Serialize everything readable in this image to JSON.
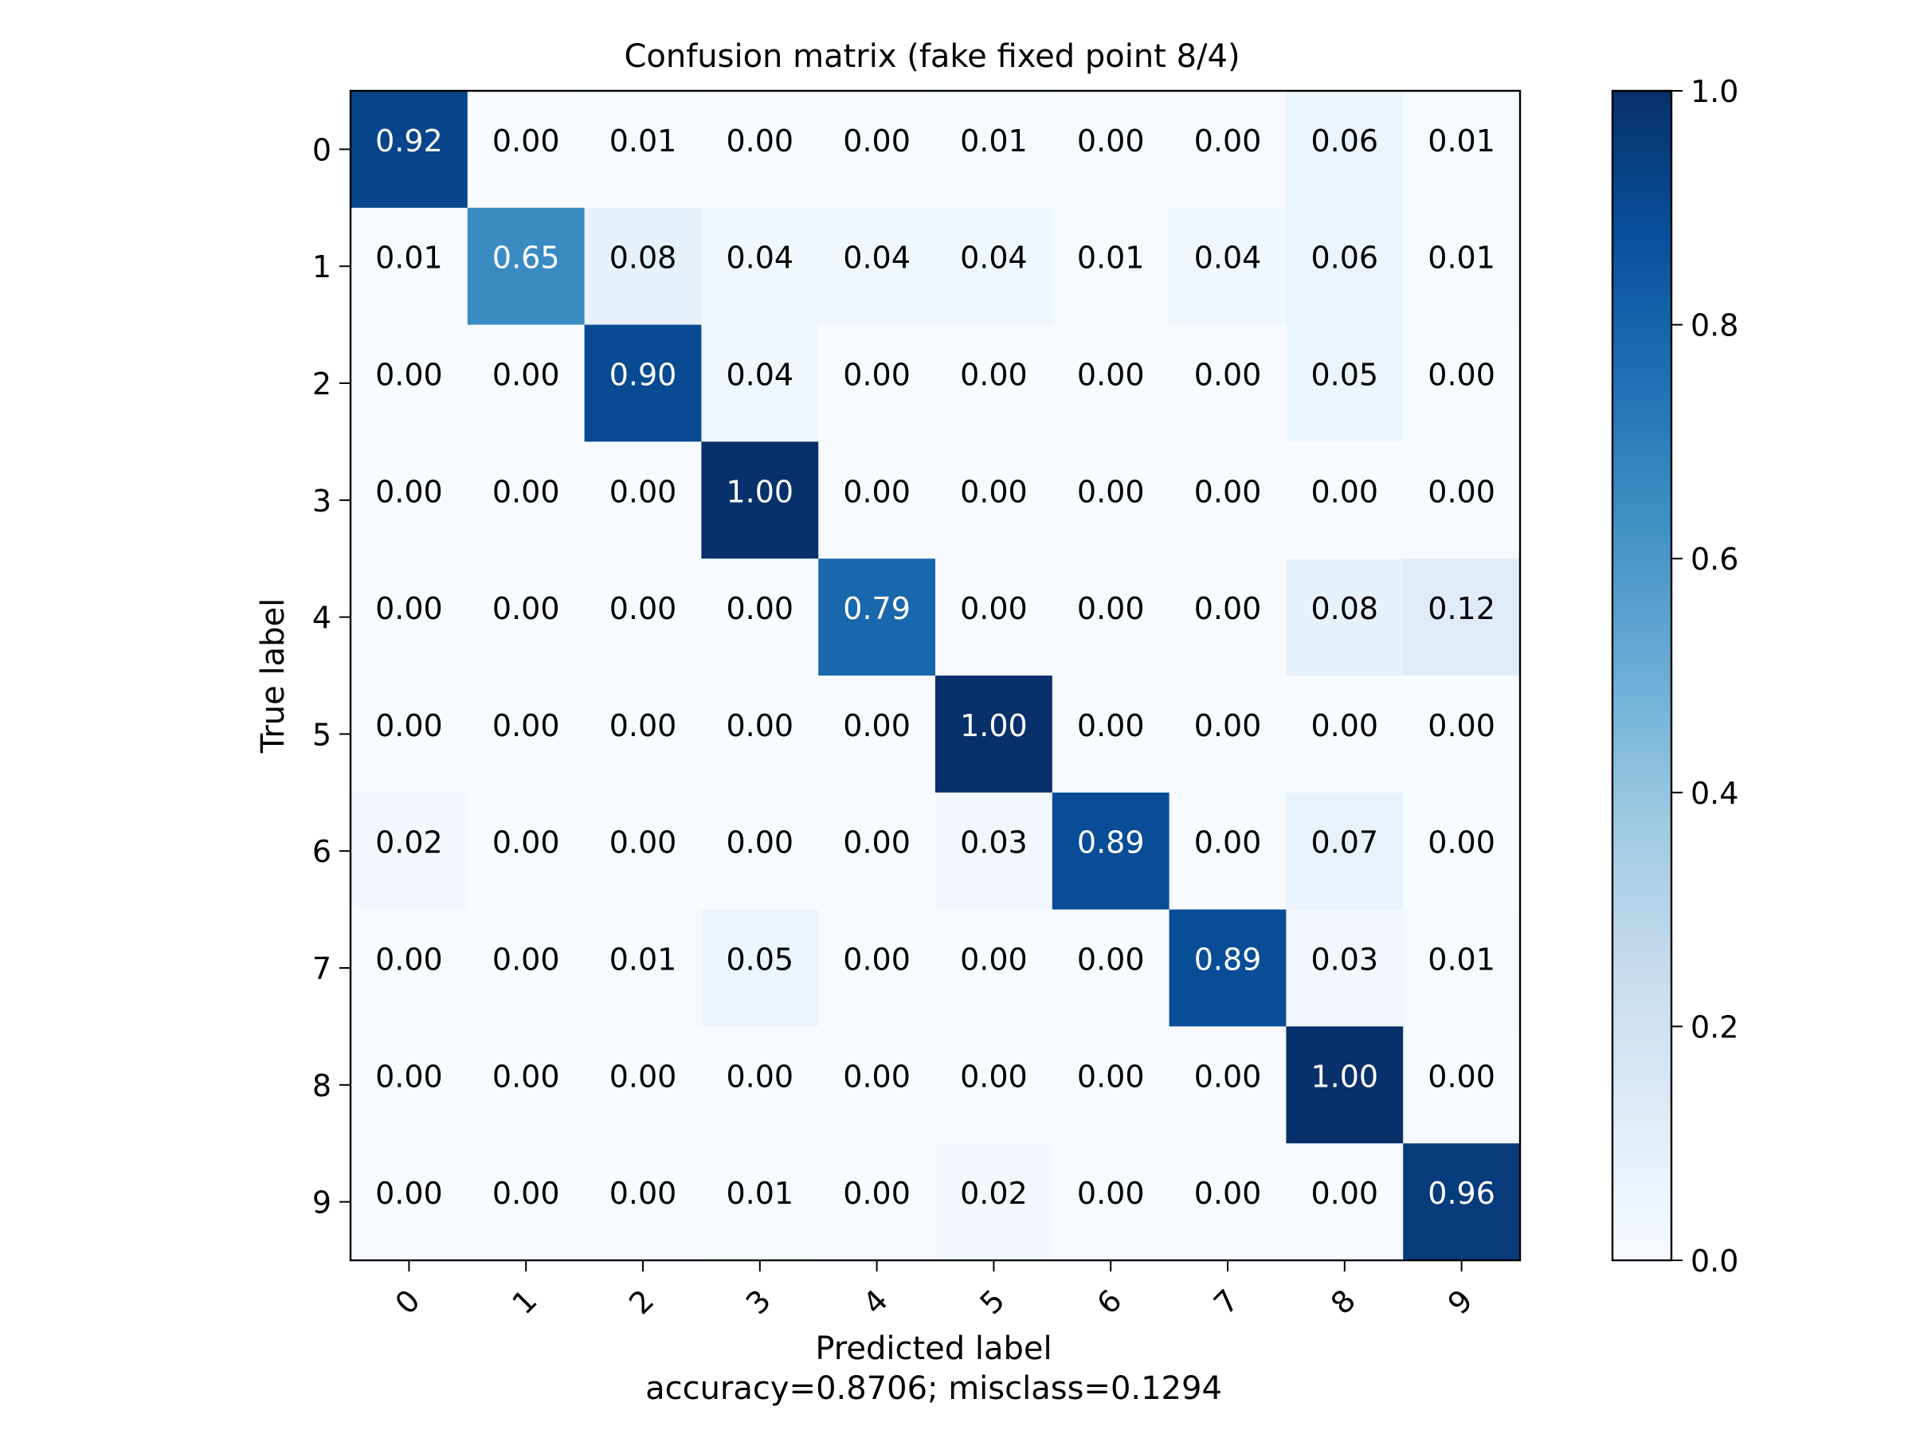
{
  "chart_data": {
    "type": "heatmap",
    "title": "Confusion matrix (fake fixed point 8/4)",
    "xlabel": "Predicted label",
    "ylabel": "True label",
    "subtitle": "accuracy=0.8706; misclass=0.1294",
    "x_categories": [
      "0",
      "1",
      "2",
      "3",
      "4",
      "5",
      "6",
      "7",
      "8",
      "9"
    ],
    "y_categories": [
      "0",
      "1",
      "2",
      "3",
      "4",
      "5",
      "6",
      "7",
      "8",
      "9"
    ],
    "values": [
      [
        0.92,
        0.0,
        0.01,
        0.0,
        0.0,
        0.01,
        0.0,
        0.0,
        0.06,
        0.01
      ],
      [
        0.01,
        0.65,
        0.08,
        0.04,
        0.04,
        0.04,
        0.01,
        0.04,
        0.06,
        0.01
      ],
      [
        0.0,
        0.0,
        0.9,
        0.04,
        0.0,
        0.0,
        0.0,
        0.0,
        0.05,
        0.0
      ],
      [
        0.0,
        0.0,
        0.0,
        1.0,
        0.0,
        0.0,
        0.0,
        0.0,
        0.0,
        0.0
      ],
      [
        0.0,
        0.0,
        0.0,
        0.0,
        0.79,
        0.0,
        0.0,
        0.0,
        0.08,
        0.12
      ],
      [
        0.0,
        0.0,
        0.0,
        0.0,
        0.0,
        1.0,
        0.0,
        0.0,
        0.0,
        0.0
      ],
      [
        0.02,
        0.0,
        0.0,
        0.0,
        0.0,
        0.03,
        0.89,
        0.0,
        0.07,
        0.0
      ],
      [
        0.0,
        0.0,
        0.01,
        0.05,
        0.0,
        0.0,
        0.0,
        0.89,
        0.03,
        0.01
      ],
      [
        0.0,
        0.0,
        0.0,
        0.0,
        0.0,
        0.0,
        0.0,
        0.0,
        1.0,
        0.0
      ],
      [
        0.0,
        0.0,
        0.0,
        0.01,
        0.0,
        0.02,
        0.0,
        0.0,
        0.0,
        0.96
      ]
    ],
    "colorbar": {
      "colormap": "Blues",
      "range": [
        0.0,
        1.0
      ],
      "ticks": [
        "0.0",
        "0.2",
        "0.4",
        "0.6",
        "0.8",
        "1.0"
      ]
    },
    "grid": false
  }
}
